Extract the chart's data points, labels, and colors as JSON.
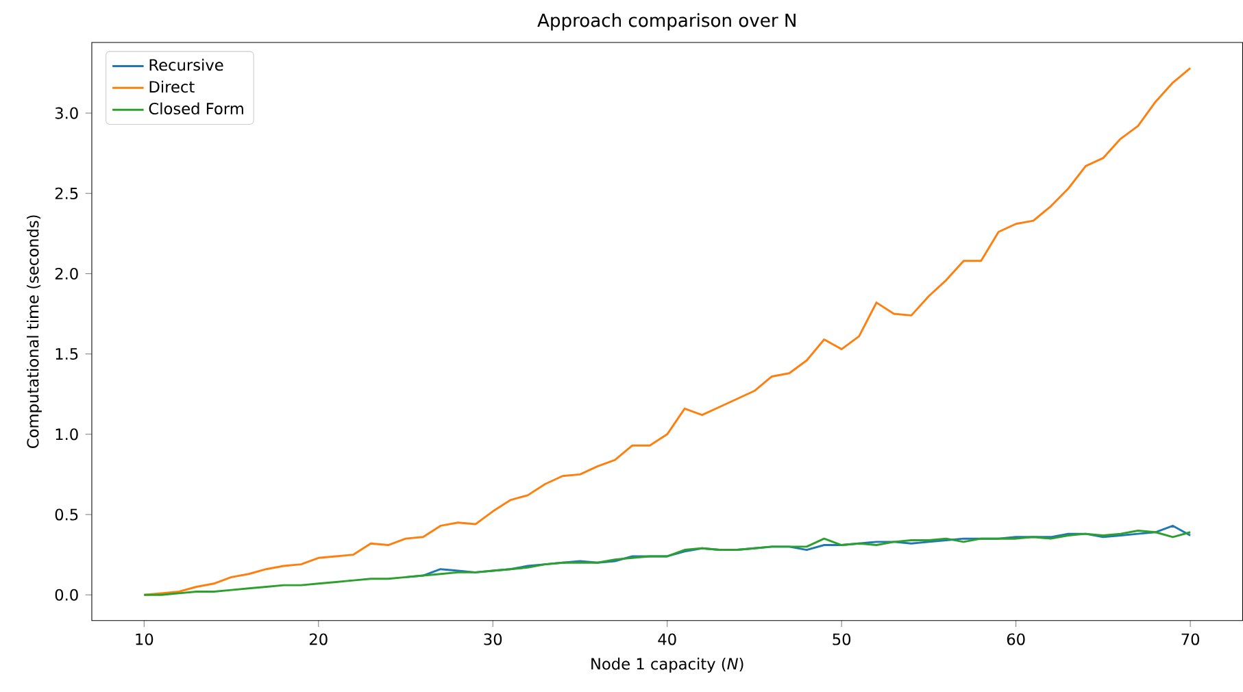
{
  "chart_data": {
    "type": "line",
    "title": "Approach comparison over N",
    "xlabel": "Node 1 capacity (*N*)",
    "ylabel": "Computational time (seconds)",
    "x": [
      10,
      11,
      12,
      13,
      14,
      15,
      16,
      17,
      18,
      19,
      20,
      21,
      22,
      23,
      24,
      25,
      26,
      27,
      28,
      29,
      30,
      31,
      32,
      33,
      34,
      35,
      36,
      37,
      38,
      39,
      40,
      41,
      42,
      43,
      44,
      45,
      46,
      47,
      48,
      49,
      50,
      51,
      52,
      53,
      54,
      55,
      56,
      57,
      58,
      59,
      60,
      61,
      62,
      63,
      64,
      65,
      66,
      67,
      68,
      69,
      70
    ],
    "series": [
      {
        "name": "Recursive",
        "color": "#1f77b4",
        "values": [
          null,
          null,
          null,
          null,
          null,
          null,
          null,
          null,
          null,
          null,
          null,
          null,
          null,
          null,
          null,
          0.11,
          0.12,
          0.16,
          0.15,
          0.14,
          0.15,
          0.16,
          0.18,
          0.19,
          0.2,
          0.21,
          0.2,
          0.21,
          0.24,
          0.24,
          0.24,
          0.27,
          0.29,
          0.28,
          0.28,
          0.29,
          0.3,
          0.3,
          0.28,
          0.31,
          0.31,
          0.32,
          0.33,
          0.33,
          0.32,
          0.33,
          0.34,
          0.35,
          0.35,
          0.35,
          0.36,
          0.36,
          0.36,
          0.38,
          0.38,
          0.36,
          0.37,
          0.38,
          0.39,
          0.43,
          0.37
        ]
      },
      {
        "name": "Direct",
        "color": "#ff7f0e",
        "values": [
          0.0,
          0.01,
          0.02,
          0.05,
          0.07,
          0.11,
          0.13,
          0.16,
          0.18,
          0.19,
          0.23,
          0.24,
          0.25,
          0.32,
          0.31,
          0.35,
          0.36,
          0.43,
          0.45,
          0.44,
          0.52,
          0.59,
          0.62,
          0.69,
          0.74,
          0.75,
          0.8,
          0.84,
          0.93,
          0.93,
          1.0,
          1.16,
          1.12,
          1.17,
          1.22,
          1.27,
          1.36,
          1.38,
          1.46,
          1.59,
          1.53,
          1.61,
          1.82,
          1.75,
          1.74,
          1.86,
          1.96,
          2.08,
          2.08,
          2.26,
          2.31,
          2.33,
          2.42,
          2.53,
          2.67,
          2.72,
          2.84,
          2.92,
          3.07,
          3.19,
          3.28
        ]
      },
      {
        "name": "Closed Form",
        "color": "#2ca02c",
        "values": [
          0.0,
          0.0,
          0.01,
          0.02,
          0.02,
          0.03,
          0.04,
          0.05,
          0.06,
          0.06,
          0.07,
          0.08,
          0.09,
          0.1,
          0.1,
          0.11,
          0.12,
          0.13,
          0.14,
          0.14,
          0.15,
          0.16,
          0.17,
          0.19,
          0.2,
          0.2,
          0.2,
          0.22,
          0.23,
          0.24,
          0.24,
          0.28,
          0.29,
          0.28,
          0.28,
          0.29,
          0.3,
          0.3,
          0.3,
          0.35,
          0.31,
          0.32,
          0.31,
          0.33,
          0.34,
          0.34,
          0.35,
          0.33,
          0.35,
          0.35,
          0.35,
          0.36,
          0.35,
          0.37,
          0.38,
          0.37,
          0.38,
          0.4,
          0.39,
          0.36,
          0.39
        ]
      }
    ],
    "xlim": [
      7,
      73
    ],
    "ylim": [
      -0.16,
      3.44
    ],
    "xticks": [
      10,
      20,
      30,
      40,
      50,
      60,
      70
    ],
    "yticks": [
      {
        "value": 0,
        "label": "0.0"
      },
      {
        "value": 0.5,
        "label": "0.5"
      },
      {
        "value": 1,
        "label": "1.0"
      },
      {
        "value": 1.5,
        "label": "1.5"
      },
      {
        "value": 2,
        "label": "2.0"
      },
      {
        "value": 2.5,
        "label": "2.5"
      },
      {
        "value": 3,
        "label": "3.0"
      }
    ],
    "legend": "top left",
    "grid": false,
    "marker": "none",
    "line_style": "solid"
  }
}
